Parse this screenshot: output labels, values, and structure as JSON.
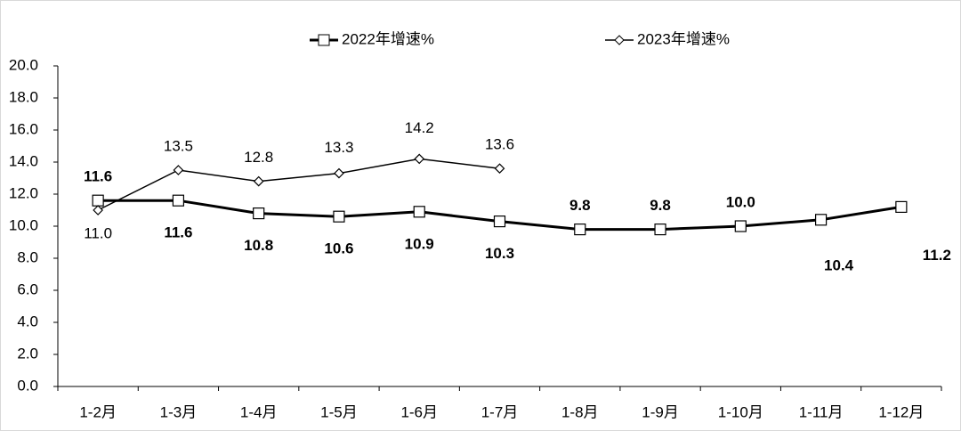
{
  "chart_data": {
    "type": "line",
    "categories": [
      "1-2月",
      "1-3月",
      "1-4月",
      "1-5月",
      "1-6月",
      "1-7月",
      "1-8月",
      "1-9月",
      "1-10月",
      "1-11月",
      "1-12月"
    ],
    "series": [
      {
        "name": "2022年增速%",
        "color": "#000000",
        "values": [
          11.6,
          11.6,
          10.8,
          10.6,
          10.9,
          10.3,
          9.8,
          9.8,
          10.0,
          10.4,
          11.2
        ],
        "value_labels": [
          "11.6",
          "11.6",
          "10.8",
          "10.6",
          "10.9",
          "10.3",
          "9.8",
          "9.8",
          "10.0",
          "10.4",
          "11.2"
        ]
      },
      {
        "name": "2023年增速%",
        "color": "#000000",
        "values": [
          11.0,
          13.5,
          12.8,
          13.3,
          14.2,
          13.6,
          null,
          null,
          null,
          null,
          null
        ],
        "value_labels": [
          "11.0",
          "13.5",
          "12.8",
          "13.3",
          "14.2",
          "13.6",
          null,
          null,
          null,
          null,
          null
        ]
      }
    ],
    "ylim": [
      0,
      20
    ],
    "yticks": [
      {
        "value": 0,
        "label": "0.0"
      },
      {
        "value": 2,
        "label": "2.0"
      },
      {
        "value": 4,
        "label": "4.0"
      },
      {
        "value": 6,
        "label": "6.0"
      },
      {
        "value": 8,
        "label": "8.0"
      },
      {
        "value": 10,
        "label": "10.0"
      },
      {
        "value": 12,
        "label": "12.0"
      },
      {
        "value": 14,
        "label": "14.0"
      },
      {
        "value": 16,
        "label": "16.0"
      },
      {
        "value": 18,
        "label": "18.0"
      },
      {
        "value": 20,
        "label": "20.0"
      }
    ],
    "legend": "top"
  }
}
